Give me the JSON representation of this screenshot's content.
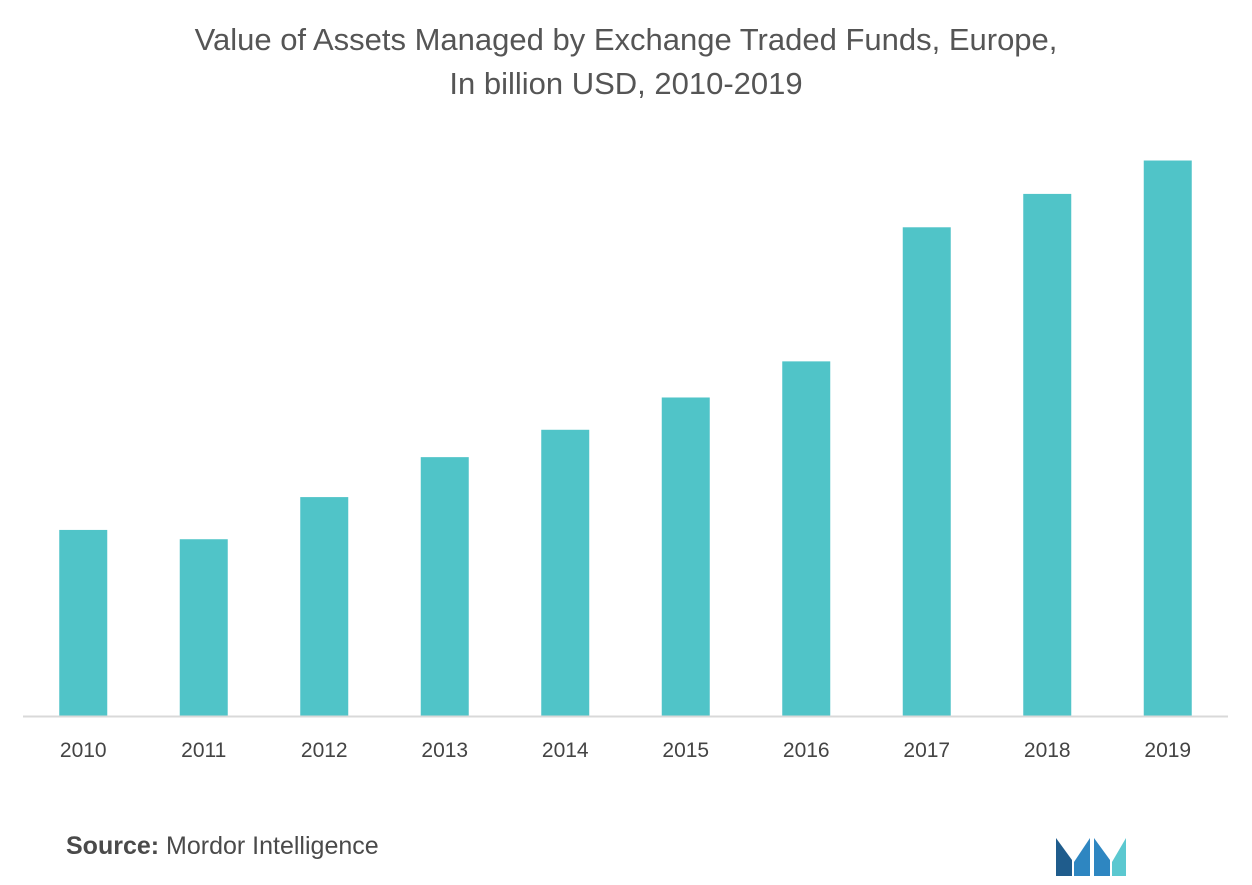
{
  "chart_data": {
    "type": "bar",
    "title_line1": "Value of Assets Managed by Exchange Traded Funds, Europe,",
    "title_line2": "In billion USD, 2010-2019",
    "categories": [
      "2010",
      "2011",
      "2012",
      "2013",
      "2014",
      "2015",
      "2016",
      "2017",
      "2018",
      "2019"
    ],
    "values": [
      34,
      32.3,
      40,
      47.3,
      52.3,
      58.2,
      64.8,
      89.3,
      95.4,
      101.5
    ],
    "ylim": [
      0,
      110
    ],
    "grid": false,
    "legend": "none",
    "bar_color": "#50c4c8",
    "axis_color": "#d9d9d9"
  },
  "source": {
    "label": "Source:",
    "text": " Mordor Intelligence"
  },
  "logo": {
    "name": "mordor-intelligence-logo",
    "colors": [
      "#1f5c8c",
      "#2e86c1",
      "#5bc8d0"
    ]
  }
}
